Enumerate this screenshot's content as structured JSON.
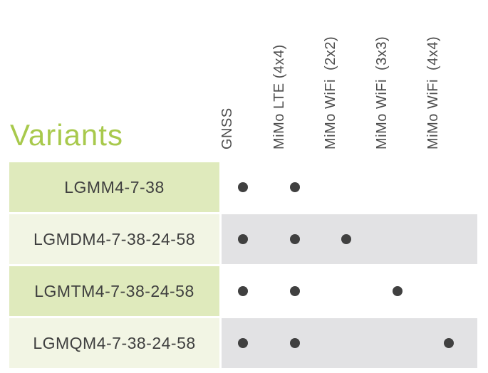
{
  "title": "Variants",
  "table": {
    "columns": [
      "GNSS",
      "MiMo LTE (4x4)",
      "MiMo WiFi  (2x2)",
      "MiMo WiFi  (3x3)",
      "MiMo WiFi  (4x4)"
    ],
    "rows": [
      {
        "label": "LGMM4-7-38",
        "features": [
          true,
          true,
          false,
          false,
          false
        ]
      },
      {
        "label": "LGMDM4-7-38-24-58",
        "features": [
          true,
          true,
          true,
          false,
          false
        ]
      },
      {
        "label": "LGMTM4-7-38-24-58",
        "features": [
          true,
          true,
          false,
          true,
          false
        ]
      },
      {
        "label": "LGMQM4-7-38-24-58",
        "features": [
          true,
          true,
          false,
          false,
          true
        ]
      }
    ]
  },
  "colors": {
    "title_green": "#a8c94c",
    "label_bg_odd": "#dfeabc",
    "label_bg_even": "#f2f5e4",
    "band_bg_odd": "#ffffff",
    "band_bg_even": "#e2e2e4",
    "dot": "#404040",
    "header_text": "#4d4d4d",
    "label_text": "#3f3f3f"
  }
}
